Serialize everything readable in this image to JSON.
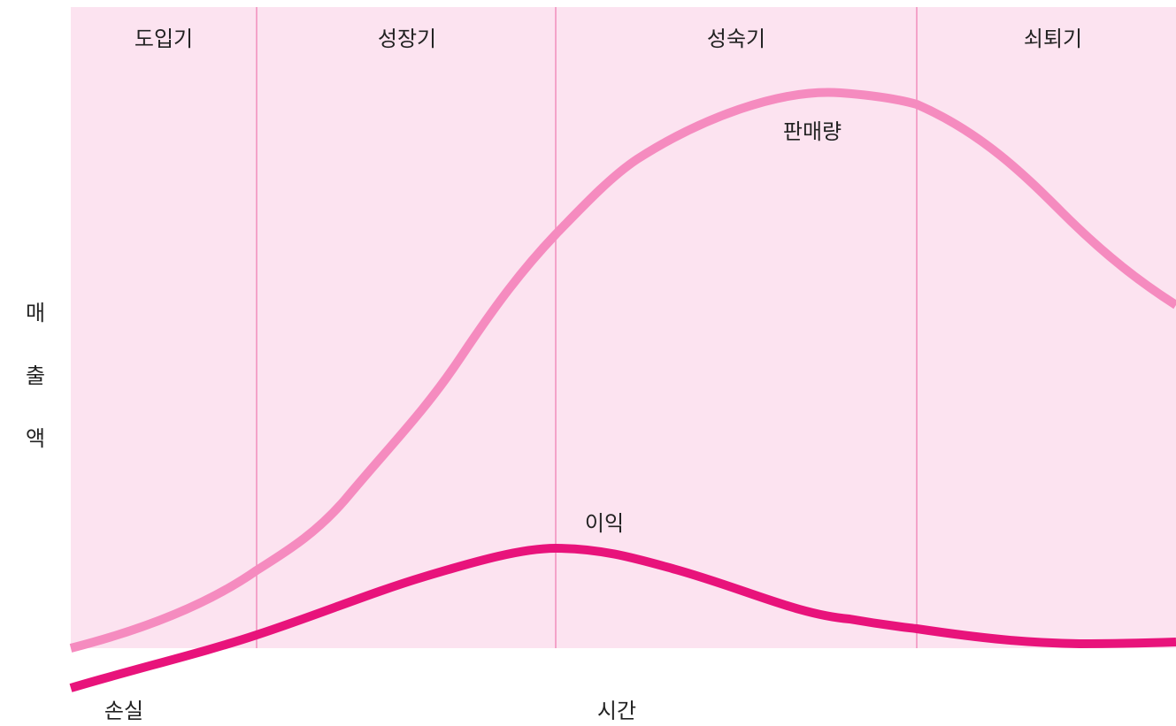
{
  "stages": [
    "도입기",
    "성장기",
    "성숙기",
    "쇠퇴기"
  ],
  "y_axis_label": [
    "매",
    "출",
    "액"
  ],
  "x_axis_label": "시간",
  "curves": {
    "sales": "판매량",
    "profit": "이익",
    "loss": "손실"
  }
}
